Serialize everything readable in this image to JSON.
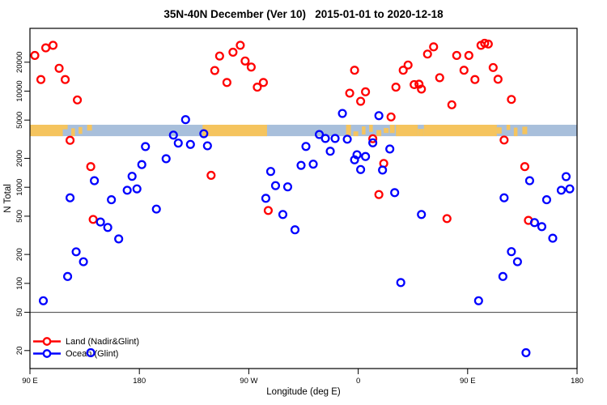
{
  "chart_data": {
    "type": "scatter",
    "title": "35N-40N December (Ver 10)   2015-01-01 to 2020-12-18",
    "xlabel": "Longitude (deg E)",
    "ylabel": "N Total",
    "x_axis": {
      "range": [
        90,
        540
      ],
      "tick_positions": [
        90,
        180,
        270,
        360,
        450,
        540
      ],
      "tick_labels": [
        "90 E",
        "180",
        "90 W",
        "0",
        "90 E",
        "180"
      ],
      "note": "longitude axis wraps: 90E to 180, 90W, 0, 90E, 180"
    },
    "y_axis": {
      "scale": "log",
      "range": [
        13,
        45000
      ],
      "ticks": [
        20,
        50,
        100,
        200,
        500,
        1000,
        2000,
        5000,
        10000,
        20000
      ]
    },
    "reference_line": {
      "value": 50,
      "color": "#3f3f3f"
    },
    "land_ocean_band": {
      "description": "land/ocean map strip for latitude band 35N-40N",
      "value_top": 4470,
      "value_bottom": 3400,
      "ocean_color": "#a8bfdb",
      "land_color": "#f5c45e",
      "ocean_range": [
        90,
        540
      ],
      "land_segments": [
        [
          90,
          117
        ],
        [
          232,
          285
        ],
        [
          350,
          354
        ],
        [
          391,
          409
        ],
        [
          414,
          474
        ]
      ],
      "coast_patches": [
        [
          117,
          121
        ],
        [
          124,
          127
        ],
        [
          130,
          133
        ],
        [
          137,
          141
        ],
        [
          356,
          360
        ],
        [
          363,
          366
        ],
        [
          369,
          372
        ],
        [
          375,
          379
        ],
        [
          381,
          385
        ],
        [
          386,
          390
        ],
        [
          409,
          414
        ],
        [
          474,
          478
        ],
        [
          482,
          485
        ],
        [
          488,
          491
        ],
        [
          495,
          499
        ]
      ]
    },
    "series": [
      {
        "name": "Land (Nadir&Glint)",
        "color": "#ff0000",
        "points": [
          [
            94,
            23500
          ],
          [
            103,
            28200
          ],
          [
            109,
            30000
          ],
          [
            99,
            13200
          ],
          [
            114,
            17300
          ],
          [
            119,
            13200
          ],
          [
            129,
            8100
          ],
          [
            123,
            3080
          ],
          [
            140,
            1640
          ],
          [
            142,
            463
          ],
          [
            239,
            1330
          ],
          [
            242,
            16400
          ],
          [
            246,
            23200
          ],
          [
            252,
            12300
          ],
          [
            257,
            25400
          ],
          [
            263,
            30000
          ],
          [
            267,
            20600
          ],
          [
            272,
            17800
          ],
          [
            277,
            11000
          ],
          [
            282,
            12300
          ],
          [
            286,
            573
          ],
          [
            353,
            9530
          ],
          [
            357,
            16500
          ],
          [
            362,
            7840
          ],
          [
            366,
            9840
          ],
          [
            372,
            3200
          ],
          [
            377,
            840
          ],
          [
            381,
            1770
          ],
          [
            387,
            5390
          ],
          [
            391,
            11000
          ],
          [
            397,
            16500
          ],
          [
            401,
            18700
          ],
          [
            406,
            11700
          ],
          [
            410,
            11800
          ],
          [
            412,
            10500
          ],
          [
            417,
            24300
          ],
          [
            422,
            28900
          ],
          [
            427,
            13800
          ],
          [
            433,
            472
          ],
          [
            437,
            7210
          ],
          [
            441,
            23500
          ],
          [
            447,
            16500
          ],
          [
            451,
            23500
          ],
          [
            456,
            13200
          ],
          [
            461,
            30000
          ],
          [
            464,
            31500
          ],
          [
            467,
            30900
          ],
          [
            471,
            17600
          ],
          [
            475,
            13300
          ],
          [
            480,
            3100
          ],
          [
            486,
            8200
          ],
          [
            497,
            1640
          ],
          [
            500,
            452
          ]
        ]
      },
      {
        "name": "Ocean (Glint)",
        "color": "#0000ff",
        "points": [
          [
            101,
            66
          ],
          [
            121,
            118
          ],
          [
            123,
            777
          ],
          [
            128,
            213
          ],
          [
            134,
            168
          ],
          [
            140,
            19
          ],
          [
            143,
            1170
          ],
          [
            148,
            435
          ],
          [
            154,
            382
          ],
          [
            157,
            742
          ],
          [
            163,
            290
          ],
          [
            170,
            931
          ],
          [
            174,
            1300
          ],
          [
            178,
            962
          ],
          [
            182,
            1720
          ],
          [
            185,
            2650
          ],
          [
            194,
            593
          ],
          [
            202,
            1980
          ],
          [
            208,
            3490
          ],
          [
            212,
            2880
          ],
          [
            218,
            5050
          ],
          [
            222,
            2790
          ],
          [
            233,
            3610
          ],
          [
            236,
            2700
          ],
          [
            284,
            767
          ],
          [
            288,
            1460
          ],
          [
            292,
            1040
          ],
          [
            298,
            521
          ],
          [
            302,
            1010
          ],
          [
            308,
            361
          ],
          [
            313,
            1690
          ],
          [
            317,
            2660
          ],
          [
            323,
            1740
          ],
          [
            328,
            3540
          ],
          [
            333,
            3220
          ],
          [
            337,
            2370
          ],
          [
            341,
            3220
          ],
          [
            347,
            5860
          ],
          [
            351,
            3160
          ],
          [
            357,
            1930
          ],
          [
            359,
            2180
          ],
          [
            362,
            1530
          ],
          [
            366,
            2090
          ],
          [
            372,
            2900
          ],
          [
            377,
            5560
          ],
          [
            380,
            1510
          ],
          [
            386,
            2500
          ],
          [
            390,
            879
          ],
          [
            395,
            102
          ],
          [
            412,
            521
          ],
          [
            459,
            66
          ],
          [
            479,
            118
          ],
          [
            480,
            777
          ],
          [
            486,
            214
          ],
          [
            491,
            168
          ],
          [
            498,
            19
          ],
          [
            501,
            1170
          ],
          [
            505,
            429
          ],
          [
            511,
            389
          ],
          [
            515,
            742
          ],
          [
            520,
            295
          ],
          [
            527,
            931
          ],
          [
            531,
            1290
          ],
          [
            534,
            962
          ]
        ]
      }
    ],
    "legend": {
      "position": "bottom-left",
      "entries": [
        {
          "label": "Land (Nadir&Glint)",
          "color": "#ff0000"
        },
        {
          "label": "Ocean (Glint)",
          "color": "#0000ff"
        }
      ]
    },
    "marker": {
      "shape": "open-circle",
      "radius": 4.4,
      "stroke_width": 2.3
    }
  }
}
